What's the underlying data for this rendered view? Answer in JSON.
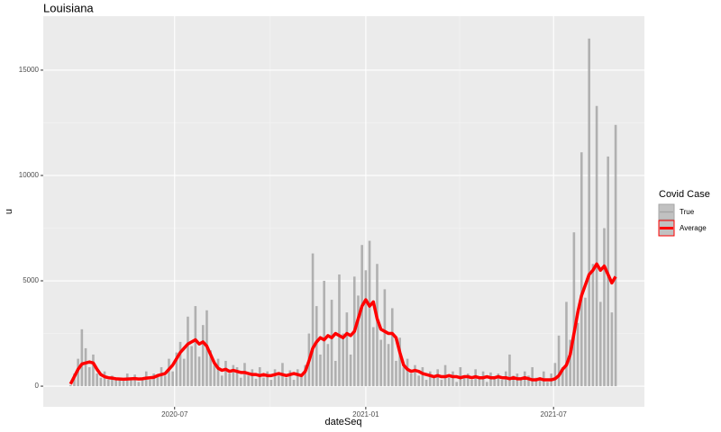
{
  "chart_data": {
    "type": "bar",
    "title": "Louisiana",
    "x_label": "dateSeq",
    "y_label": "u",
    "legend_title": "Covid Case",
    "legend": "right",
    "grid": true,
    "background": "#ebebeb",
    "x": [
      2020.22,
      2020.23,
      2020.24,
      2020.25,
      2020.26,
      2020.27,
      2020.28,
      2020.29,
      2020.3,
      2020.31,
      2020.32,
      2020.33,
      2020.34,
      2020.35,
      2020.36,
      2020.37,
      2020.38,
      2020.39,
      2020.4,
      2020.41,
      2020.42,
      2020.43,
      2020.44,
      2020.45,
      2020.46,
      2020.47,
      2020.48,
      2020.49,
      2020.5,
      2020.51,
      2020.52,
      2020.53,
      2020.54,
      2020.55,
      2020.56,
      2020.57,
      2020.58,
      2020.59,
      2020.6,
      2020.61,
      2020.62,
      2020.63,
      2020.64,
      2020.65,
      2020.66,
      2020.67,
      2020.68,
      2020.69,
      2020.7,
      2020.71,
      2020.72,
      2020.73,
      2020.74,
      2020.75,
      2020.76,
      2020.77,
      2020.78,
      2020.79,
      2020.8,
      2020.81,
      2020.82,
      2020.83,
      2020.84,
      2020.85,
      2020.86,
      2020.87,
      2020.88,
      2020.89,
      2020.9,
      2020.91,
      2020.92,
      2020.93,
      2020.94,
      2020.95,
      2020.96,
      2020.97,
      2020.98,
      2020.99,
      2021.0,
      2021.01,
      2021.02,
      2021.03,
      2021.04,
      2021.05,
      2021.06,
      2021.07,
      2021.08,
      2021.09,
      2021.1,
      2021.11,
      2021.12,
      2021.13,
      2021.14,
      2021.15,
      2021.16,
      2021.17,
      2021.18,
      2021.19,
      2021.2,
      2021.21,
      2021.22,
      2021.23,
      2021.24,
      2021.25,
      2021.26,
      2021.27,
      2021.28,
      2021.29,
      2021.3,
      2021.31,
      2021.32,
      2021.33,
      2021.34,
      2021.35,
      2021.36,
      2021.37,
      2021.38,
      2021.39,
      2021.4,
      2021.41,
      2021.42,
      2021.43,
      2021.44,
      2021.45,
      2021.46,
      2021.47,
      2021.48,
      2021.49,
      2021.5,
      2021.51,
      2021.52,
      2021.53,
      2021.54,
      2021.55,
      2021.56,
      2021.57,
      2021.58,
      2021.59,
      2021.6,
      2021.61,
      2021.62,
      2021.63,
      2021.64,
      2021.65,
      2021.66
    ],
    "series": [
      {
        "name": "True",
        "type": "bar",
        "color": "#a6a6a6",
        "values": [
          50,
          600,
          1300,
          2700,
          1800,
          900,
          1500,
          600,
          400,
          700,
          300,
          500,
          300,
          400,
          250,
          600,
          300,
          550,
          200,
          400,
          700,
          300,
          600,
          450,
          900,
          500,
          1300,
          700,
          1600,
          2100,
          1300,
          3300,
          1900,
          3800,
          1400,
          2900,
          3600,
          1700,
          1000,
          1300,
          500,
          1200,
          600,
          1000,
          900,
          400,
          1100,
          500,
          800,
          350,
          900,
          400,
          700,
          300,
          800,
          500,
          1100,
          400,
          750,
          300,
          800,
          500,
          1000,
          2500,
          6300,
          3800,
          1500,
          5000,
          2000,
          4100,
          1200,
          5300,
          2500,
          3500,
          1500,
          5200,
          4300,
          6700,
          5500,
          6900,
          2800,
          5800,
          2200,
          4600,
          2000,
          3700,
          1200,
          2300,
          900,
          1300,
          600,
          1000,
          500,
          900,
          300,
          700,
          400,
          800,
          300,
          1000,
          400,
          700,
          200,
          900,
          500,
          600,
          300,
          800,
          400,
          700,
          200,
          650,
          400,
          600,
          300,
          700,
          1500,
          500,
          600,
          300,
          700,
          500,
          900,
          400,
          300,
          700,
          200,
          600,
          1100,
          2400,
          900,
          4000,
          2200,
          7300,
          3000,
          11100,
          4200,
          16500,
          5800,
          13300,
          4000,
          7500,
          10900,
          3500,
          12400
        ]
      },
      {
        "name": "Average",
        "type": "line",
        "color": "#ff0000",
        "values": [
          100,
          450,
          800,
          1050,
          1100,
          1150,
          1100,
          800,
          550,
          450,
          400,
          380,
          350,
          340,
          330,
          340,
          350,
          360,
          340,
          350,
          380,
          400,
          420,
          500,
          550,
          600,
          800,
          1000,
          1300,
          1600,
          1800,
          2000,
          2100,
          2200,
          2000,
          2100,
          1900,
          1500,
          1100,
          850,
          750,
          800,
          700,
          750,
          700,
          650,
          650,
          600,
          550,
          550,
          500,
          550,
          500,
          500,
          550,
          600,
          550,
          500,
          550,
          600,
          550,
          500,
          700,
          1200,
          1800,
          2100,
          2300,
          2200,
          2400,
          2300,
          2500,
          2400,
          2300,
          2500,
          2400,
          2600,
          3200,
          3800,
          4100,
          3800,
          4000,
          3200,
          2700,
          2600,
          2500,
          2500,
          2300,
          1600,
          1000,
          800,
          700,
          750,
          700,
          600,
          550,
          500,
          450,
          500,
          450,
          450,
          500,
          450,
          450,
          400,
          450,
          450,
          400,
          450,
          400,
          400,
          450,
          400,
          400,
          450,
          400,
          400,
          350,
          400,
          350,
          350,
          400,
          350,
          300,
          300,
          350,
          300,
          300,
          300,
          350,
          500,
          800,
          1000,
          1500,
          2500,
          3500,
          4300,
          4800,
          5300,
          5500,
          5800,
          5500,
          5700,
          5300,
          4900,
          5200
        ]
      }
    ],
    "xlim": [
      2020.148,
      2021.736
    ],
    "xticks": [
      {
        "value": 2020.495,
        "label": "2020-07"
      },
      {
        "value": 2021.0,
        "label": "2021-01"
      },
      {
        "value": 2021.496,
        "label": "2021-07"
      }
    ],
    "ylim": [
      -980,
      17560
    ],
    "yticks": [
      0,
      5000,
      10000,
      15000
    ]
  }
}
